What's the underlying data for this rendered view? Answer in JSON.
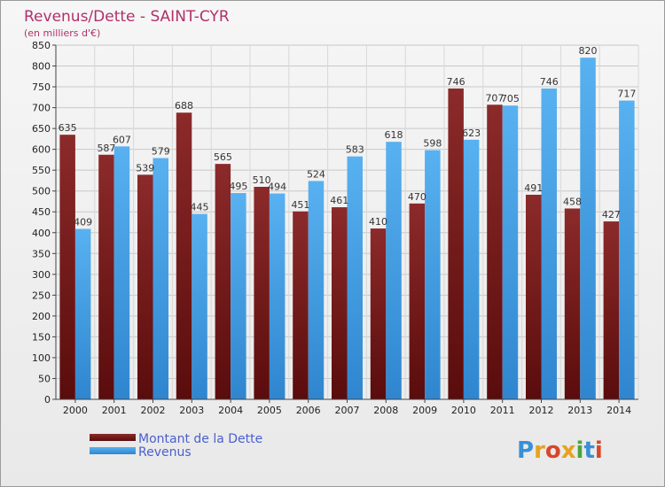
{
  "colors": {
    "debt": "#7a1f1f",
    "revenue": "#4aa3e8",
    "title": "#b0306a",
    "legend_text": "#4a5fcf"
  },
  "logo": {
    "text": "Proxiti"
  },
  "chart_data": {
    "type": "bar",
    "title": "Revenus/Dette - SAINT-CYR",
    "subtitle": "(en milliers d'€)",
    "categories": [
      "2000",
      "2001",
      "2002",
      "2003",
      "2004",
      "2005",
      "2006",
      "2007",
      "2008",
      "2009",
      "2010",
      "2011",
      "2012",
      "2013",
      "2014"
    ],
    "series": [
      {
        "name": "Montant de la Dette",
        "values": [
          635,
          587,
          539,
          688,
          565,
          510,
          451,
          461,
          410,
          470,
          746,
          707,
          491,
          458,
          427
        ]
      },
      {
        "name": "Revenus",
        "values": [
          409,
          607,
          579,
          445,
          495,
          494,
          524,
          583,
          618,
          598,
          623,
          705,
          746,
          820,
          717
        ]
      }
    ],
    "ylim": [
      0,
      850
    ],
    "ytick_step": 50,
    "grid": true,
    "legend_position": "bottom-left"
  }
}
